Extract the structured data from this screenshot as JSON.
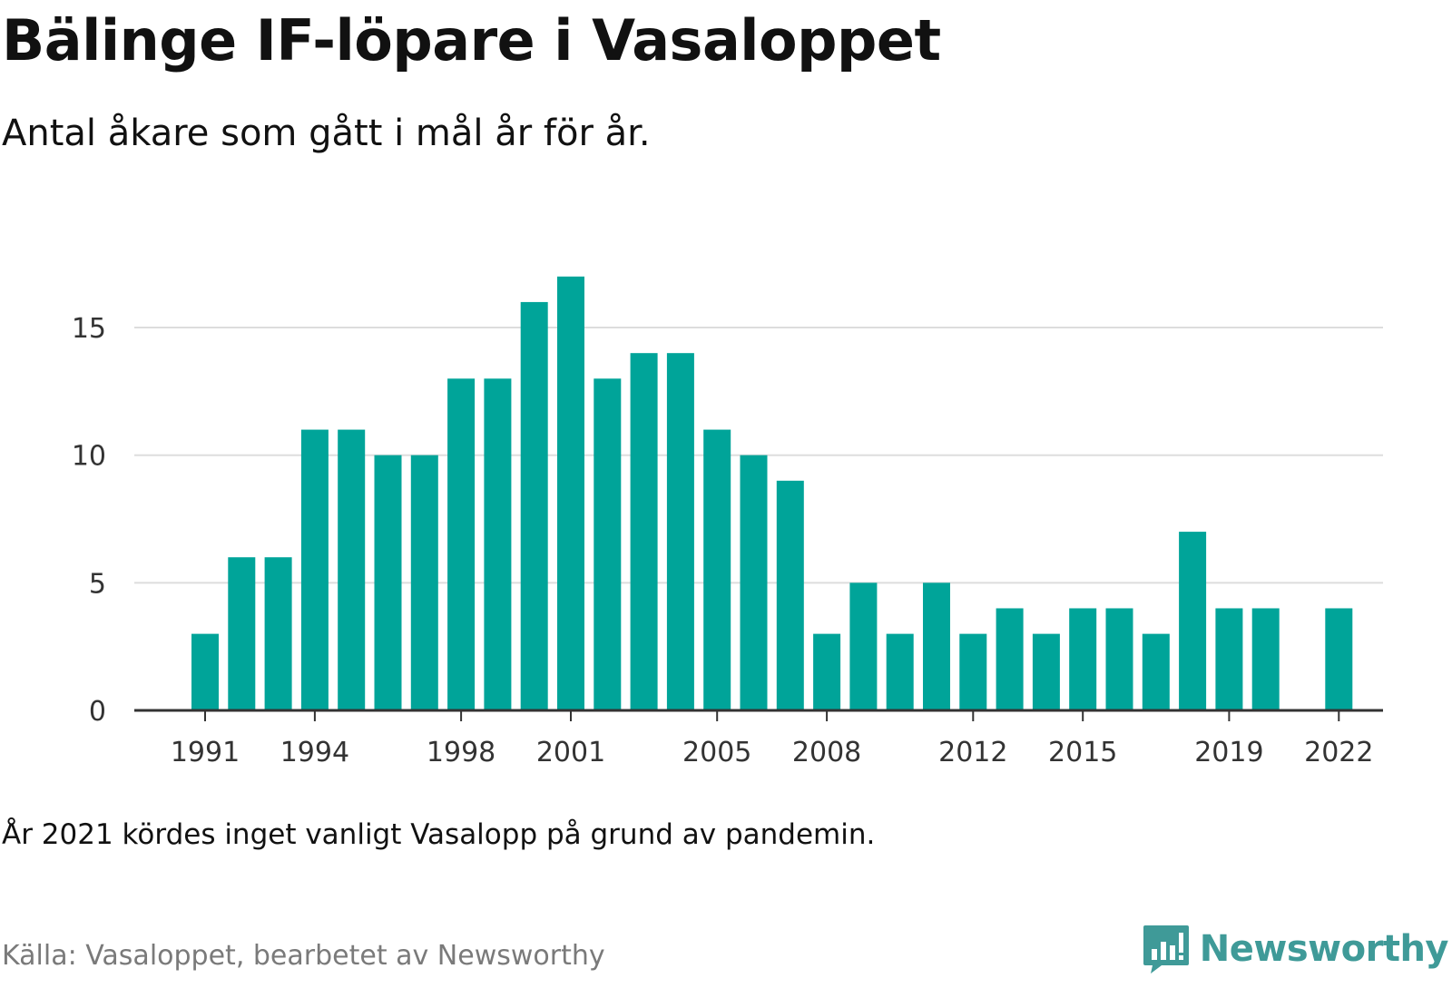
{
  "header": {
    "title": "Bälinge IF-löpare i Vasaloppet",
    "subtitle": "Antal åkare som gått i mål år för år."
  },
  "footer": {
    "note": "År 2021 kördes inget vanligt Vasalopp på grund av pandemin.",
    "source": "Källa: Vasaloppet, bearbetet av Newsworthy",
    "brand": "Newsworthy",
    "brand_icon": "bar-chart-speech-bubble-icon"
  },
  "colors": {
    "bar": "#00A499",
    "grid": "#dddddd",
    "axis": "#333333",
    "brand": "#3f9a98"
  },
  "chart_data": {
    "type": "bar",
    "title": "Bälinge IF-löpare i Vasaloppet",
    "subtitle": "Antal åkare som gått i mål år för år.",
    "xlabel": "",
    "ylabel": "",
    "categories": [
      1991,
      1992,
      1993,
      1994,
      1995,
      1996,
      1997,
      1998,
      1999,
      2000,
      2001,
      2002,
      2003,
      2004,
      2005,
      2006,
      2007,
      2008,
      2009,
      2010,
      2011,
      2012,
      2013,
      2014,
      2015,
      2016,
      2017,
      2018,
      2019,
      2020,
      2021,
      2022
    ],
    "values": [
      3,
      6,
      6,
      11,
      11,
      10,
      10,
      13,
      13,
      16,
      17,
      13,
      14,
      14,
      11,
      10,
      9,
      3,
      5,
      3,
      5,
      3,
      4,
      3,
      4,
      4,
      3,
      7,
      4,
      4,
      null,
      4
    ],
    "x_tick_labels": [
      "1991",
      "1994",
      "1998",
      "2001",
      "2005",
      "2008",
      "2012",
      "2015",
      "2019",
      "2022"
    ],
    "y_ticks": [
      0,
      5,
      10,
      15
    ],
    "ylim": [
      0,
      17
    ],
    "grid": true,
    "legend": "none"
  }
}
